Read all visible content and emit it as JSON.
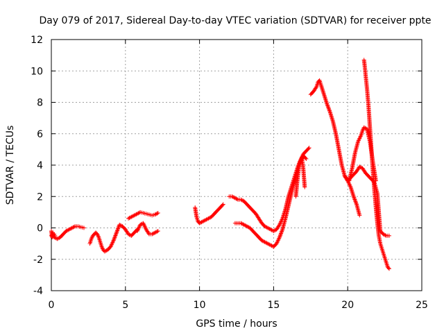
{
  "chart_data": {
    "type": "scatter",
    "title": "Day 079 of 2017, Sidereal Day-to-day VTEC variation (SDTVAR) for receiver ppte",
    "xlabel": "GPS time / hours",
    "ylabel": "SDTVAR / TECUs",
    "xlim": [
      0,
      25
    ],
    "ylim": [
      -4,
      12
    ],
    "xticks": [
      0,
      5,
      10,
      15,
      20,
      25
    ],
    "yticks": [
      -4,
      -2,
      0,
      2,
      4,
      6,
      8,
      10,
      12
    ],
    "xtick_labels": [
      "0",
      "5",
      "10",
      "15",
      "20",
      "25"
    ],
    "ytick_labels": [
      "-4",
      "-2",
      "0",
      "2",
      "4",
      "6",
      "8",
      "10",
      "12"
    ],
    "grid": true,
    "marker": "+",
    "color": "#ff0000",
    "series": [
      {
        "x": [
          0.0,
          0.2,
          0.4,
          0.6,
          0.8,
          1.0,
          1.2,
          1.4,
          1.6,
          1.8,
          2.0,
          2.2
        ],
        "y": [
          -0.5,
          -0.6,
          -0.7,
          -0.6,
          -0.4,
          -0.2,
          -0.1,
          0.0,
          0.1,
          0.1,
          0.05,
          0.0
        ]
      },
      {
        "x": [
          0.0,
          0.05,
          0.1,
          0.15,
          0.2,
          0.25
        ],
        "y": [
          -0.2,
          -0.6,
          -0.3,
          -0.5,
          -0.4,
          -0.5
        ]
      },
      {
        "x": [
          2.6,
          2.7,
          2.8,
          2.9,
          3.0,
          3.1,
          3.2,
          3.3,
          3.4,
          3.5,
          3.6,
          3.8,
          4.0,
          4.2,
          4.4,
          4.6,
          4.8,
          5.0,
          5.2,
          5.4,
          5.6,
          5.8
        ],
        "y": [
          -1.0,
          -0.7,
          -0.5,
          -0.4,
          -0.3,
          -0.4,
          -0.6,
          -0.9,
          -1.2,
          -1.4,
          -1.5,
          -1.4,
          -1.2,
          -0.8,
          -0.3,
          0.2,
          0.1,
          -0.1,
          -0.4,
          -0.5,
          -0.3,
          -0.1
        ]
      },
      {
        "x": [
          5.2,
          5.4,
          5.6,
          5.8,
          6.0,
          6.2,
          6.4,
          6.6,
          6.8,
          7.0,
          7.2
        ],
        "y": [
          0.6,
          0.7,
          0.8,
          0.9,
          1.0,
          0.95,
          0.9,
          0.85,
          0.8,
          0.85,
          0.95
        ]
      },
      {
        "x": [
          5.8,
          6.0,
          6.2,
          6.4,
          6.6,
          6.8,
          7.0,
          7.2
        ],
        "y": [
          -0.2,
          0.2,
          0.3,
          -0.1,
          -0.4,
          -0.4,
          -0.3,
          -0.2
        ]
      },
      {
        "x": [
          9.7,
          9.8,
          9.9,
          10.0,
          10.2,
          10.4,
          10.6,
          10.8,
          11.0,
          11.2,
          11.4,
          11.6
        ],
        "y": [
          1.3,
          0.7,
          0.4,
          0.3,
          0.4,
          0.5,
          0.6,
          0.7,
          0.9,
          1.1,
          1.3,
          1.5
        ]
      },
      {
        "x": [
          12.0,
          12.2,
          12.4,
          12.6,
          12.8,
          13.0,
          13.2,
          13.4,
          13.6,
          13.8,
          14.0,
          14.2,
          14.4,
          14.6,
          14.8,
          15.0,
          15.2,
          15.4,
          15.6,
          15.8,
          16.0,
          16.2,
          16.4,
          16.6,
          16.8,
          17.0,
          17.2,
          17.4
        ],
        "y": [
          2.0,
          2.0,
          1.9,
          1.8,
          1.8,
          1.7,
          1.5,
          1.3,
          1.1,
          0.9,
          0.6,
          0.3,
          0.1,
          0.0,
          -0.1,
          -0.2,
          -0.1,
          0.2,
          0.6,
          1.2,
          2.0,
          2.6,
          3.2,
          3.8,
          4.3,
          4.7,
          4.9,
          5.1
        ]
      },
      {
        "x": [
          12.4,
          12.6,
          12.8,
          13.0,
          13.2,
          13.4,
          13.6,
          13.8,
          14.0,
          14.2,
          14.4,
          14.6,
          14.8,
          15.0,
          15.2,
          15.4,
          15.6,
          15.8,
          16.0,
          16.2,
          16.4,
          16.6,
          16.8,
          17.0,
          17.2
        ],
        "y": [
          0.3,
          0.3,
          0.3,
          0.2,
          0.1,
          0.0,
          -0.2,
          -0.4,
          -0.6,
          -0.8,
          -0.9,
          -1.0,
          -1.1,
          -1.2,
          -1.0,
          -0.6,
          -0.1,
          0.6,
          1.4,
          2.2,
          2.9,
          3.6,
          4.2,
          4.6,
          4.4
        ]
      },
      {
        "x": [
          16.5,
          16.6,
          16.7,
          16.8,
          16.9,
          17.0,
          17.1
        ],
        "y": [
          2.0,
          3.0,
          3.8,
          4.2,
          4.5,
          3.8,
          2.6
        ]
      },
      {
        "x": [
          17.5,
          17.7,
          17.9,
          18.0,
          18.1,
          18.2,
          18.4,
          18.6,
          18.8,
          19.0,
          19.2,
          19.4,
          19.6,
          19.8,
          20.0,
          20.2,
          20.4,
          20.6,
          20.8
        ],
        "y": [
          8.5,
          8.7,
          9.0,
          9.3,
          9.4,
          9.1,
          8.5,
          7.9,
          7.4,
          6.8,
          6.0,
          5.0,
          4.0,
          3.3,
          3.0,
          2.6,
          2.0,
          1.5,
          0.8
        ]
      },
      {
        "x": [
          19.8,
          20.0,
          20.2,
          20.4,
          20.6,
          20.8,
          21.0,
          21.2,
          21.4,
          21.6,
          21.8,
          22.0,
          22.1,
          22.2,
          22.4,
          22.6,
          22.8
        ],
        "y": [
          3.3,
          3.0,
          3.2,
          3.4,
          3.6,
          3.9,
          3.8,
          3.5,
          3.3,
          3.1,
          2.9,
          2.2,
          1.0,
          -0.2,
          -0.4,
          -0.5,
          -0.5
        ]
      },
      {
        "x": [
          19.9,
          20.1,
          20.3,
          20.5,
          20.7,
          20.9,
          21.0,
          21.1,
          21.3,
          21.5,
          21.7,
          21.9
        ],
        "y": [
          3.2,
          3.0,
          3.8,
          4.8,
          5.5,
          5.9,
          6.2,
          6.4,
          6.3,
          5.5,
          4.2,
          3.0
        ]
      },
      {
        "x": [
          21.1,
          21.15,
          21.2,
          21.3,
          21.4,
          21.5,
          21.6,
          21.7,
          21.8,
          21.9,
          22.0,
          22.1,
          22.2,
          22.3,
          22.4,
          22.5,
          22.6,
          22.7,
          22.8
        ],
        "y": [
          10.7,
          10.3,
          9.8,
          8.9,
          7.8,
          6.4,
          5.0,
          3.6,
          2.4,
          1.3,
          0.3,
          -0.5,
          -1.0,
          -1.3,
          -1.6,
          -1.9,
          -2.2,
          -2.5,
          -2.6
        ]
      }
    ]
  }
}
